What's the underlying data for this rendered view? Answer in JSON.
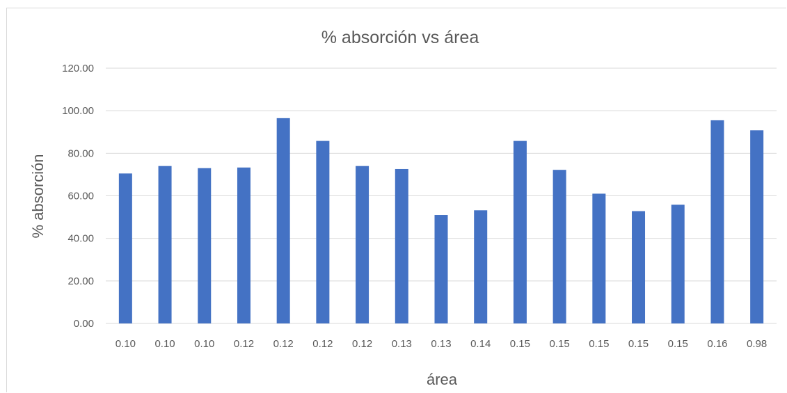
{
  "chart_data": {
    "type": "bar",
    "title": "% absorción vs área",
    "xlabel": "área",
    "ylabel": "% absorción",
    "categories": [
      "0.10",
      "0.10",
      "0.10",
      "0.12",
      "0.12",
      "0.12",
      "0.12",
      "0.13",
      "0.13",
      "0.14",
      "0.15",
      "0.15",
      "0.15",
      "0.15",
      "0.15",
      "0.16",
      "0.98"
    ],
    "values": [
      70.5,
      74.0,
      73.0,
      73.3,
      96.5,
      85.8,
      74.0,
      72.6,
      51.0,
      53.2,
      85.8,
      72.2,
      61.0,
      52.8,
      55.8,
      95.5,
      90.8
    ],
    "ylim": [
      0,
      120
    ],
    "yticks": [
      "0.00",
      "20.00",
      "40.00",
      "60.00",
      "80.00",
      "100.00",
      "120.00"
    ],
    "grid": true,
    "legend": "none",
    "bar_color": "#4472c4"
  }
}
